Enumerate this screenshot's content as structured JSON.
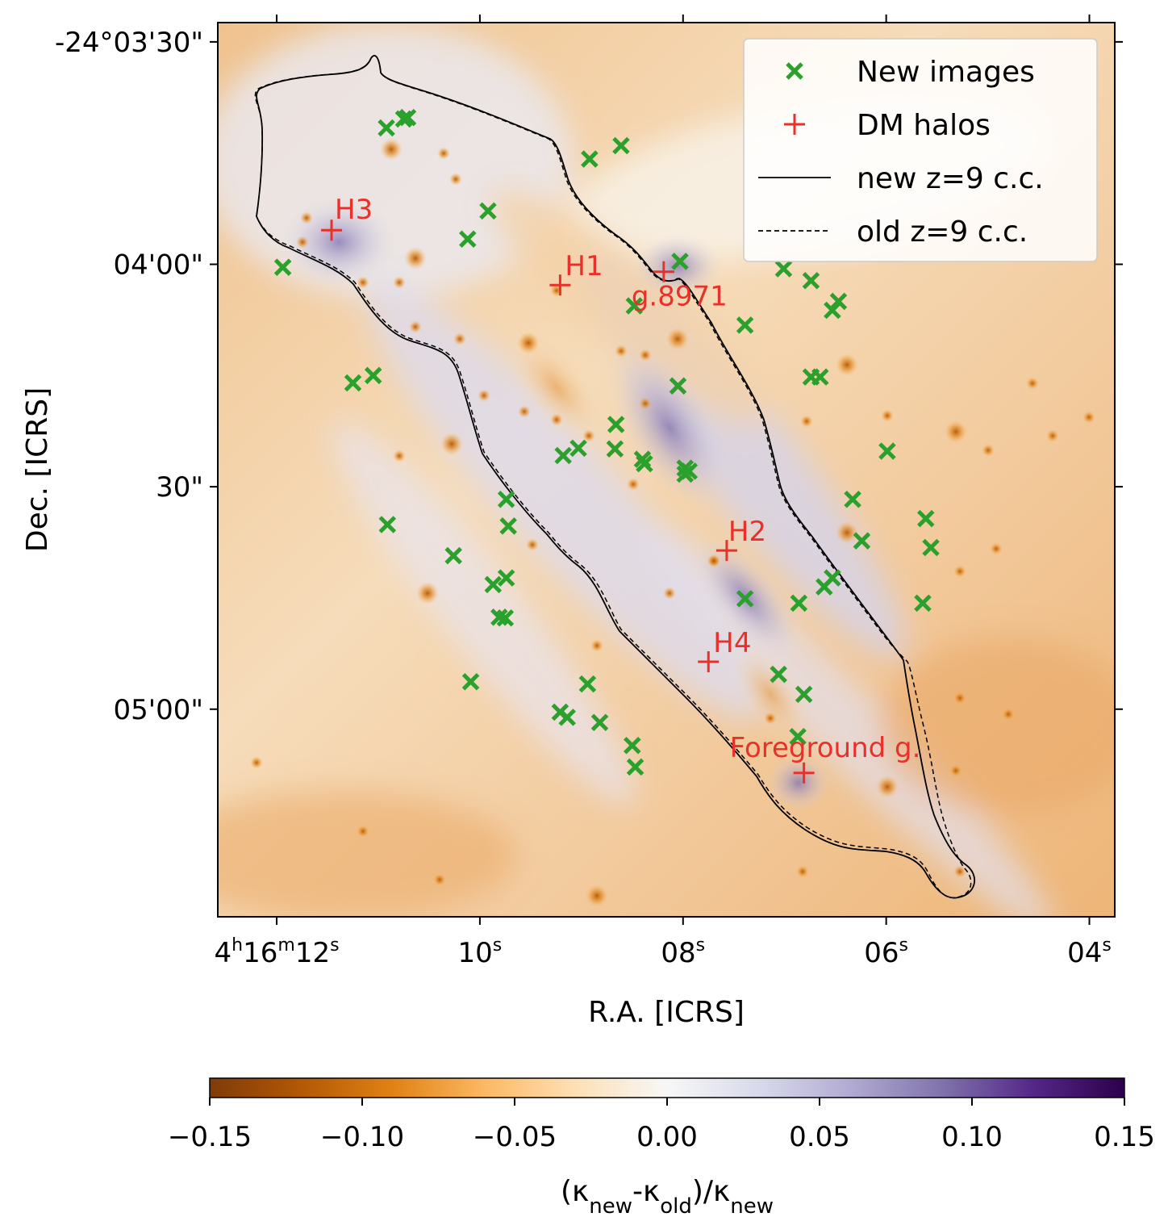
{
  "chart_data": {
    "type": "scatter",
    "xlabel": "R.A. [ICRS]",
    "ylabel": "Dec. [ICRS]",
    "x_ticks": [
      {
        "ra_s": 12,
        "label": "4h16m12s"
      },
      {
        "ra_s": 10,
        "label": "10s"
      },
      {
        "ra_s": 8,
        "label": "08s"
      },
      {
        "ra_s": 6,
        "label": "06s"
      },
      {
        "ra_s": 4,
        "label": "04s"
      }
    ],
    "y_ticks": [
      {
        "dec_arcsec": 210,
        "label": "-24°03'30\""
      },
      {
        "dec_arcsec": 240,
        "label": "04'00\""
      },
      {
        "dec_arcsec": 270,
        "label": "30\""
      },
      {
        "dec_arcsec": 300,
        "label": "05'00\""
      }
    ],
    "xlim_ra_s": [
      12.58,
      3.75
    ],
    "ylim_dec_arcsec": [
      207.4,
      328.0
    ],
    "colorbar": {
      "label": "(κnew-κold)/κnew",
      "range": [
        -0.15,
        0.15
      ],
      "ticks": [
        "−0.15",
        "−0.10",
        "−0.05",
        "0.00",
        "0.05",
        "0.10",
        "0.15"
      ],
      "colors": [
        "#7f3b08",
        "#b35806",
        "#e08214",
        "#fdb863",
        "#fee0b6",
        "#f7f7f7",
        "#d8daeb",
        "#b2abd2",
        "#8073ac",
        "#542788",
        "#2d004b"
      ]
    },
    "legend": {
      "placement": "upper right",
      "entries": [
        {
          "marker": "x",
          "label": "New images",
          "color": "#2ca02c"
        },
        {
          "marker": "+",
          "label": "DM halos",
          "color": "#e8312a"
        },
        {
          "marker": "solid-line",
          "label": "new z=9 c.c.",
          "color": "#000000"
        },
        {
          "marker": "dashed-line",
          "label": "old z=9 c.c.",
          "color": "#000000"
        }
      ]
    },
    "halos": [
      {
        "label": "H3",
        "ra_s": 11.46,
        "dec_arcsec": 235.4
      },
      {
        "label": "H1",
        "ra_s": 9.21,
        "dec_arcsec": 242.8
      },
      {
        "label": "g.8971",
        "ra_s": 8.19,
        "dec_arcsec": 241.0
      },
      {
        "label": "H2",
        "ra_s": 7.57,
        "dec_arcsec": 278.6
      },
      {
        "label": "H4",
        "ra_s": 7.75,
        "dec_arcsec": 293.6
      },
      {
        "label": "Foreground g.",
        "ra_s": 6.81,
        "dec_arcsec": 308.6
      }
    ],
    "new_images": [
      {
        "ra_s": 10.92,
        "dec_arcsec": 221.6
      },
      {
        "ra_s": 10.75,
        "dec_arcsec": 220.4
      },
      {
        "ra_s": 10.71,
        "dec_arcsec": 220.2
      },
      {
        "ra_s": 8.92,
        "dec_arcsec": 225.8
      },
      {
        "ra_s": 8.61,
        "dec_arcsec": 224.0
      },
      {
        "ra_s": 9.92,
        "dec_arcsec": 232.8
      },
      {
        "ra_s": 10.12,
        "dec_arcsec": 236.6
      },
      {
        "ra_s": 11.94,
        "dec_arcsec": 240.4
      },
      {
        "ra_s": 8.03,
        "dec_arcsec": 239.6
      },
      {
        "ra_s": 7.01,
        "dec_arcsec": 240.6
      },
      {
        "ra_s": 6.74,
        "dec_arcsec": 242.2
      },
      {
        "ra_s": 6.47,
        "dec_arcsec": 245.0
      },
      {
        "ra_s": 6.53,
        "dec_arcsec": 246.2
      },
      {
        "ra_s": 8.48,
        "dec_arcsec": 245.6
      },
      {
        "ra_s": 7.39,
        "dec_arcsec": 248.2
      },
      {
        "ra_s": 6.74,
        "dec_arcsec": 255.2
      },
      {
        "ra_s": 6.65,
        "dec_arcsec": 255.2
      },
      {
        "ra_s": 11.05,
        "dec_arcsec": 255.0
      },
      {
        "ra_s": 11.25,
        "dec_arcsec": 256.0
      },
      {
        "ra_s": 8.05,
        "dec_arcsec": 256.4
      },
      {
        "ra_s": 8.66,
        "dec_arcsec": 261.6
      },
      {
        "ra_s": 9.03,
        "dec_arcsec": 264.8
      },
      {
        "ra_s": 9.18,
        "dec_arcsec": 265.8
      },
      {
        "ra_s": 8.67,
        "dec_arcsec": 264.9
      },
      {
        "ra_s": 8.4,
        "dec_arcsec": 266.3
      },
      {
        "ra_s": 8.38,
        "dec_arcsec": 266.9
      },
      {
        "ra_s": 7.98,
        "dec_arcsec": 267.5
      },
      {
        "ra_s": 7.98,
        "dec_arcsec": 268.3
      },
      {
        "ra_s": 7.94,
        "dec_arcsec": 267.9
      },
      {
        "ra_s": 5.99,
        "dec_arcsec": 265.2
      },
      {
        "ra_s": 9.74,
        "dec_arcsec": 271.7
      },
      {
        "ra_s": 10.91,
        "dec_arcsec": 275.1
      },
      {
        "ra_s": 9.72,
        "dec_arcsec": 275.3
      },
      {
        "ra_s": 6.33,
        "dec_arcsec": 271.7
      },
      {
        "ra_s": 5.61,
        "dec_arcsec": 274.3
      },
      {
        "ra_s": 6.24,
        "dec_arcsec": 277.3
      },
      {
        "ra_s": 5.56,
        "dec_arcsec": 278.2
      },
      {
        "ra_s": 10.26,
        "dec_arcsec": 279.3
      },
      {
        "ra_s": 9.74,
        "dec_arcsec": 282.3
      },
      {
        "ra_s": 9.87,
        "dec_arcsec": 283.2
      },
      {
        "ra_s": 6.53,
        "dec_arcsec": 282.3
      },
      {
        "ra_s": 6.61,
        "dec_arcsec": 283.5
      },
      {
        "ra_s": 7.39,
        "dec_arcsec": 285.1
      },
      {
        "ra_s": 6.86,
        "dec_arcsec": 285.7
      },
      {
        "ra_s": 5.64,
        "dec_arcsec": 285.7
      },
      {
        "ra_s": 9.81,
        "dec_arcsec": 287.6
      },
      {
        "ra_s": 9.75,
        "dec_arcsec": 287.7
      },
      {
        "ra_s": 10.09,
        "dec_arcsec": 296.3
      },
      {
        "ra_s": 8.94,
        "dec_arcsec": 296.6
      },
      {
        "ra_s": 7.06,
        "dec_arcsec": 295.3
      },
      {
        "ra_s": 6.81,
        "dec_arcsec": 298.0
      },
      {
        "ra_s": 9.21,
        "dec_arcsec": 300.4
      },
      {
        "ra_s": 9.14,
        "dec_arcsec": 301.1
      },
      {
        "ra_s": 8.82,
        "dec_arcsec": 301.8
      },
      {
        "ra_s": 8.5,
        "dec_arcsec": 304.9
      },
      {
        "ra_s": 8.47,
        "dec_arcsec": 307.8
      },
      {
        "ra_s": 6.87,
        "dec_arcsec": 303.7
      }
    ]
  }
}
